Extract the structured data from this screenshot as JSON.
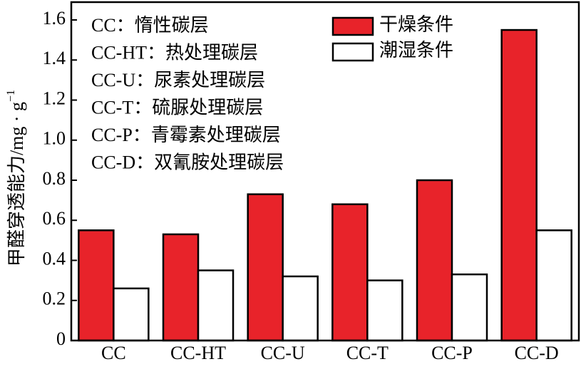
{
  "chart_data": {
    "type": "bar",
    "ylabel": "甲醛穿透能力/mg · g",
    "ylabel_sup": "−1",
    "categories": [
      "CC",
      "CC-HT",
      "CC-U",
      "CC-T",
      "CC-P",
      "CC-D"
    ],
    "series": [
      {
        "name": "干燥条件",
        "color": "#e8232a",
        "values": [
          0.55,
          0.53,
          0.73,
          0.68,
          0.8,
          1.55
        ]
      },
      {
        "name": "潮湿条件",
        "color": "#ffffff",
        "values": [
          0.26,
          0.35,
          0.32,
          0.3,
          0.33,
          0.55
        ]
      }
    ],
    "annotations": [
      "CC：惰性碳层",
      "CC-HT：热处理碳层",
      "CC-U：尿素处理碳层",
      "CC-T：硫脲处理碳层",
      "CC-P：青霉素处理碳层",
      "CC-D：双氰胺处理碳层"
    ],
    "ylim": [
      0,
      1.6
    ],
    "yticks": [
      0,
      0.2,
      0.4,
      0.6,
      0.8,
      {
        "value": 1,
        "label": "1.0"
      },
      1.2,
      1.4,
      1.6
    ],
    "legend": "upper right"
  }
}
